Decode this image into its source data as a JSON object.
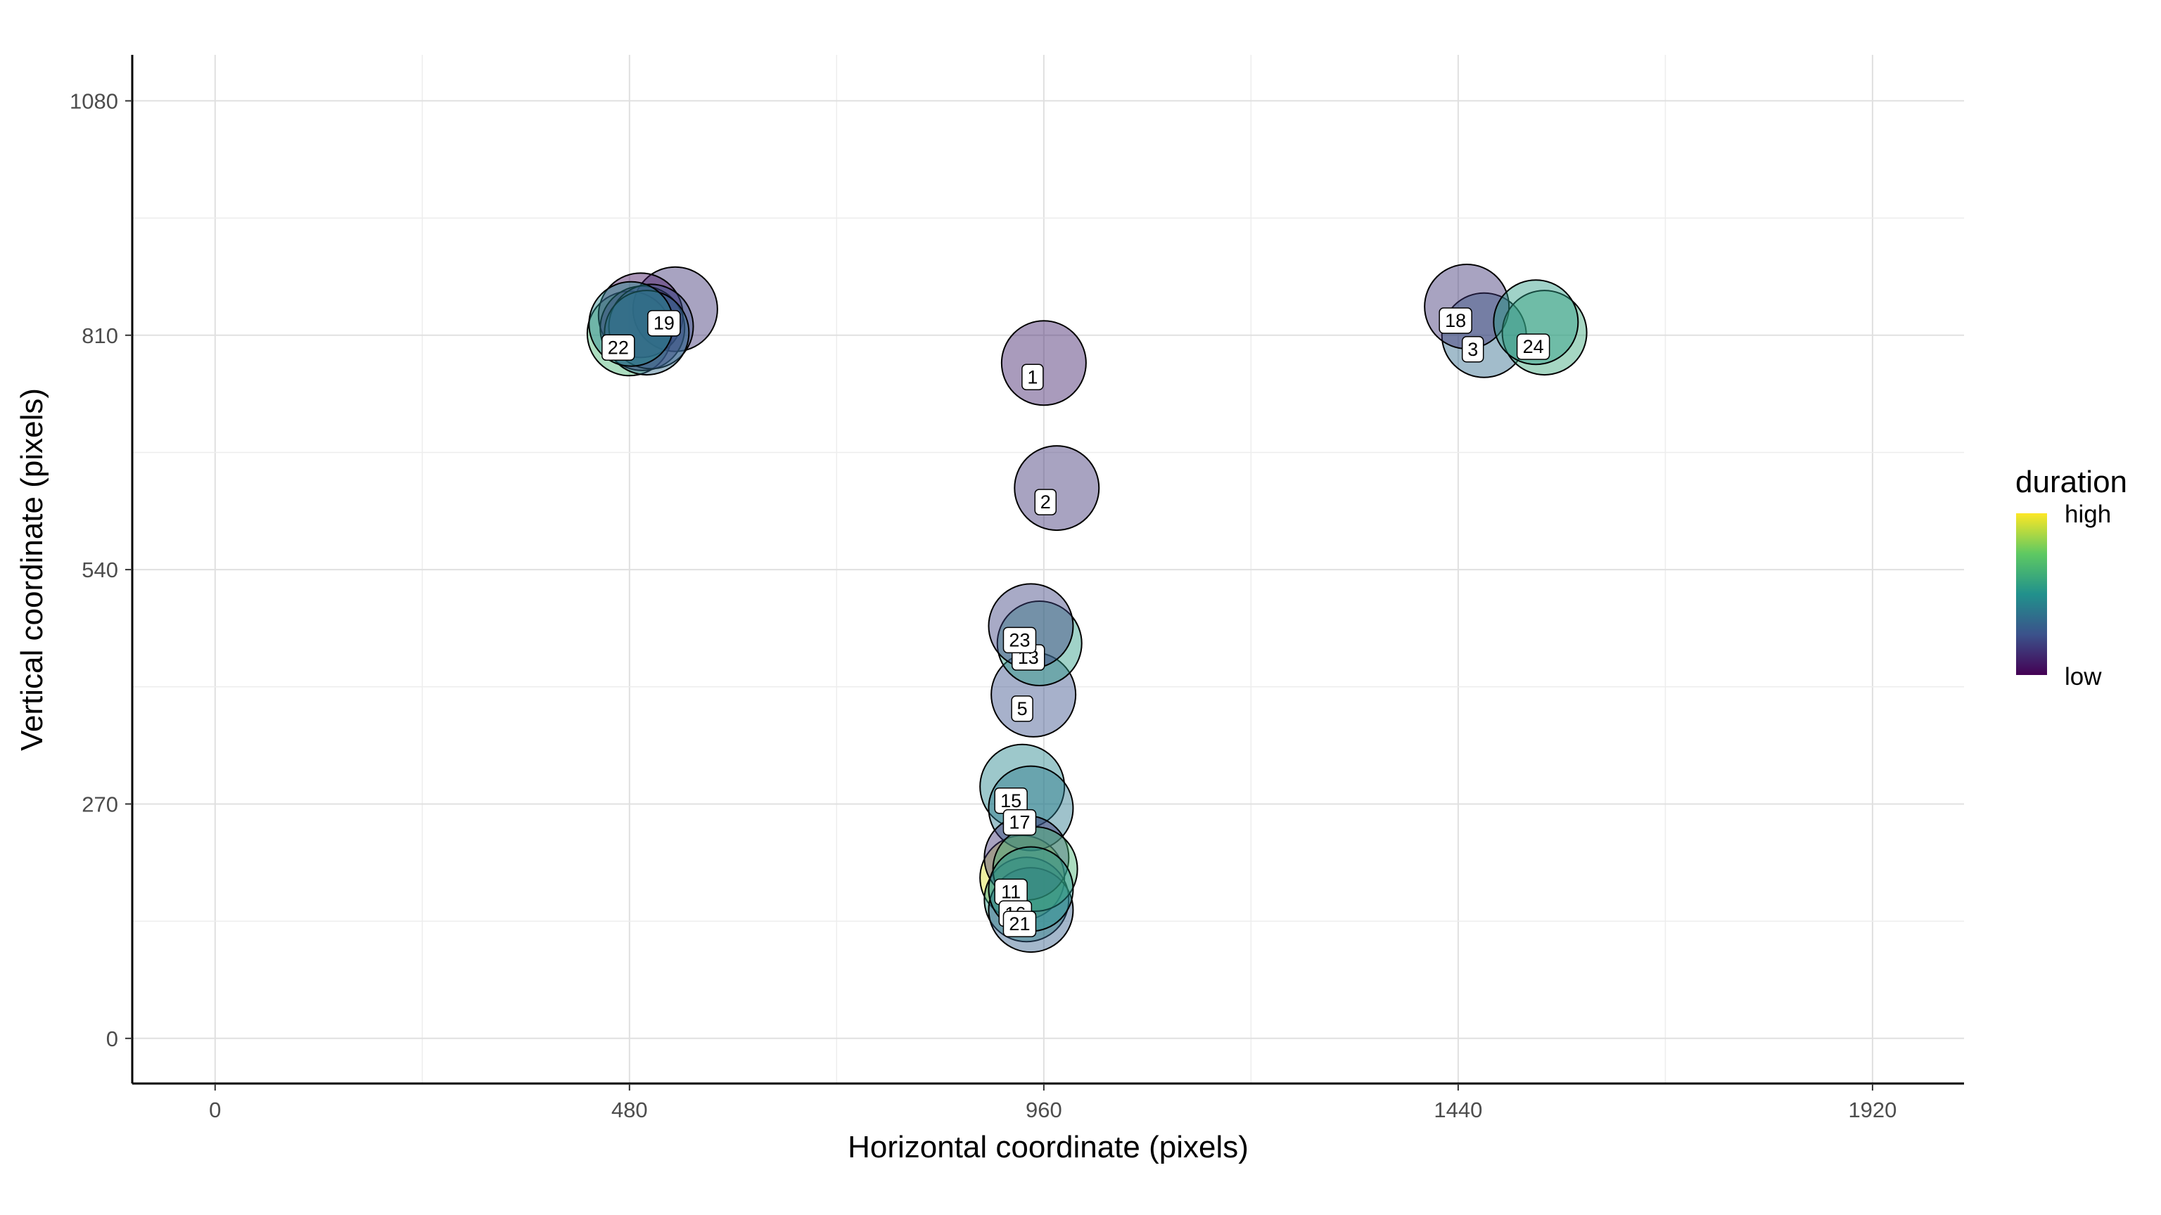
{
  "chart_data": {
    "type": "scatter",
    "xlabel": "Horizontal coordinate (pixels)",
    "ylabel": "Vertical coordinate (pixels)",
    "xlim": [
      -96,
      2026
    ],
    "ylim": [
      -52,
      1133
    ],
    "x_ticks": [
      0,
      480,
      960,
      1440,
      1920
    ],
    "y_ticks": [
      0,
      270,
      540,
      810,
      1080
    ],
    "grid": true,
    "legend": {
      "title": "duration",
      "high_label": "high",
      "low_label": "low",
      "position": "right"
    },
    "colors": {
      "low": "#440154",
      "mid": "#21918c",
      "high": "#fde725"
    },
    "points": [
      {
        "label": "1",
        "x": 960,
        "y": 778,
        "duration": 0.1
      },
      {
        "label": "2",
        "x": 975,
        "y": 634,
        "duration": 0.15
      },
      {
        "label": "3",
        "x": 1470,
        "y": 810,
        "duration": 0.35
      },
      {
        "label": "5",
        "x": 948,
        "y": 396,
        "duration": 0.25
      },
      {
        "label": "11",
        "x": 935,
        "y": 185,
        "duration": 0.95
      },
      {
        "label": "13",
        "x": 955,
        "y": 455,
        "duration": 0.55
      },
      {
        "label": "15",
        "x": 935,
        "y": 290,
        "duration": 0.45
      },
      {
        "label": "16",
        "x": 940,
        "y": 160,
        "duration": 0.55
      },
      {
        "label": "17",
        "x": 945,
        "y": 265,
        "duration": 0.4
      },
      {
        "label": "18",
        "x": 1450,
        "y": 843,
        "duration": 0.15
      },
      {
        "label": "19",
        "x": 533,
        "y": 840,
        "duration": 0.15
      },
      {
        "label": "21",
        "x": 945,
        "y": 148,
        "duration": 0.3
      },
      {
        "label": "22",
        "x": 480,
        "y": 812,
        "duration": 0.65
      },
      {
        "label": "23",
        "x": 945,
        "y": 475,
        "duration": 0.2
      },
      {
        "label": "24",
        "x": 1540,
        "y": 813,
        "duration": 0.6
      },
      {
        "label": "",
        "x": 1530,
        "y": 825,
        "duration": 0.55
      },
      {
        "label": "",
        "x": 493,
        "y": 833,
        "duration": 0.05
      },
      {
        "label": "",
        "x": 495,
        "y": 818,
        "duration": 0.1
      },
      {
        "label": "",
        "x": 505,
        "y": 820,
        "duration": 0.25
      },
      {
        "label": "",
        "x": 500,
        "y": 813,
        "duration": 0.35
      },
      {
        "label": "",
        "x": 482,
        "y": 823,
        "duration": 0.45
      },
      {
        "label": "",
        "x": 940,
        "y": 208,
        "duration": 0.15
      },
      {
        "label": "",
        "x": 950,
        "y": 195,
        "duration": 0.65
      },
      {
        "label": "",
        "x": 945,
        "y": 172,
        "duration": 0.5
      }
    ]
  }
}
